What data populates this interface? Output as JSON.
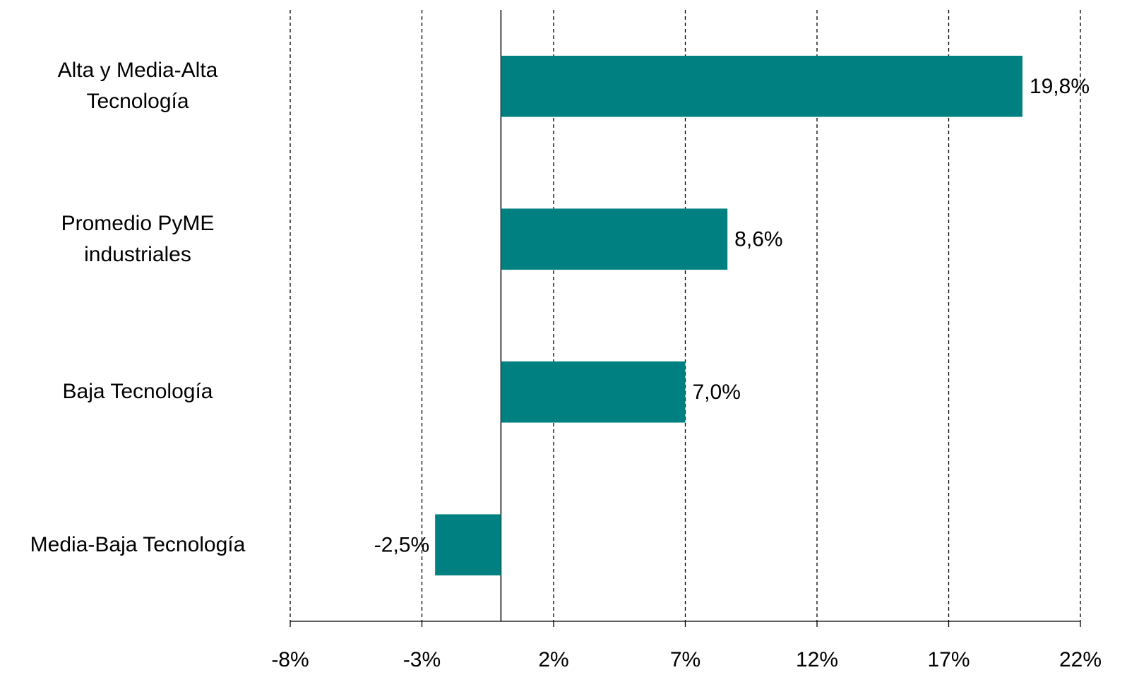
{
  "chart_data": {
    "type": "bar",
    "orientation": "horizontal",
    "categories": [
      "Alta y Media-Alta Tecnología",
      "Promedio PyME industriales",
      "Baja Tecnología",
      "Media-Baja Tecnología"
    ],
    "values": [
      19.8,
      8.6,
      7.0,
      -2.5
    ],
    "value_labels": [
      "19,8%",
      "8,6%",
      "7,0%",
      "-2,5%"
    ],
    "color": "#008080",
    "xlim": [
      -8,
      22
    ],
    "xticks": [
      {
        "value": -8,
        "label": "-8%"
      },
      {
        "value": -3,
        "label": "-3%"
      },
      {
        "value": 2,
        "label": "2%"
      },
      {
        "value": 7,
        "label": "7%"
      },
      {
        "value": 12,
        "label": "12%"
      },
      {
        "value": 17,
        "label": "17%"
      },
      {
        "value": 22,
        "label": "22%"
      }
    ],
    "grid": true
  }
}
